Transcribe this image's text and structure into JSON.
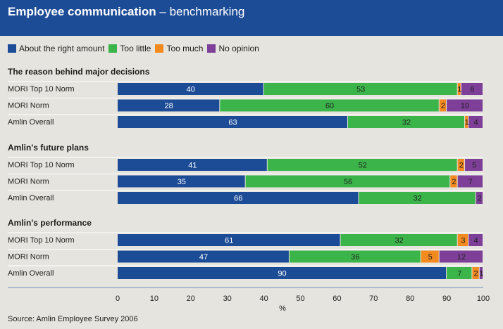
{
  "header": {
    "title_bold": "Employee communication",
    "title_rest": " – benchmarking"
  },
  "legend": [
    {
      "name": "About the right amount",
      "color": "#1d4c97"
    },
    {
      "name": "Too little",
      "color": "#3bb54a"
    },
    {
      "name": "Too much",
      "color": "#f28a20"
    },
    {
      "name": "No opinion",
      "color": "#7e3f98"
    }
  ],
  "source": "Source: Amlin Employee Survey 2006",
  "chart_data": {
    "type": "bar",
    "orientation": "horizontal",
    "stacked": true,
    "title": "Employee communication – benchmarking",
    "xlabel": "%",
    "xlim": [
      0,
      100
    ],
    "xticks": [
      0,
      10,
      20,
      30,
      40,
      50,
      60,
      70,
      80,
      90,
      100
    ],
    "series_names": [
      "About the right amount",
      "Too little",
      "Too much",
      "No opinion"
    ],
    "series_colors": [
      "#1d4c97",
      "#3bb54a",
      "#f28a20",
      "#7e3f98"
    ],
    "groups": [
      {
        "title": "The reason behind major decisions",
        "rows": [
          {
            "label": "MORI Top 10 Norm",
            "values": [
              40,
              53,
              1,
              6
            ]
          },
          {
            "label": "MORI Norm",
            "values": [
              28,
              60,
              2,
              10
            ]
          },
          {
            "label": "Amlin Overall",
            "values": [
              63,
              32,
              1,
              4
            ]
          }
        ]
      },
      {
        "title": "Amlin's future plans",
        "rows": [
          {
            "label": "MORI Top 10 Norm",
            "values": [
              41,
              52,
              2,
              5
            ]
          },
          {
            "label": "MORI Norm",
            "values": [
              35,
              56,
              2,
              7
            ]
          },
          {
            "label": "Amlin Overall",
            "values": [
              66,
              32,
              0,
              2
            ]
          }
        ]
      },
      {
        "title": "Amlin's performance",
        "rows": [
          {
            "label": "MORI Top 10 Norm",
            "values": [
              61,
              32,
              3,
              4
            ]
          },
          {
            "label": "MORI Norm",
            "values": [
              47,
              36,
              5,
              12
            ]
          },
          {
            "label": "Amlin Overall",
            "values": [
              90,
              7,
              2,
              1
            ]
          }
        ]
      }
    ]
  }
}
